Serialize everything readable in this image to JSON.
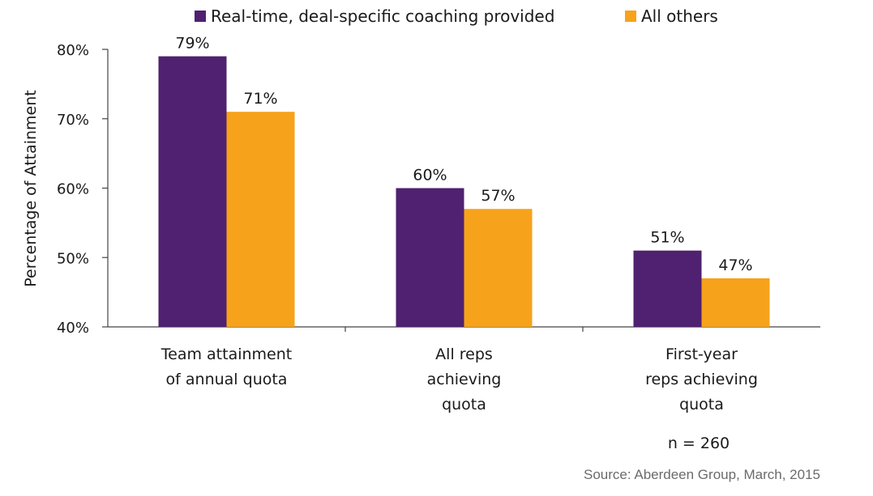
{
  "chart_data": {
    "type": "bar",
    "categories": [
      [
        "Team attainment",
        "of annual quota"
      ],
      [
        "All reps",
        "achieving",
        "quota"
      ],
      [
        "First-year",
        "reps achieving",
        "quota"
      ]
    ],
    "series": [
      {
        "name": "Real-time, deal-specific coaching provided",
        "color": "#4f2170",
        "values": [
          79,
          60,
          51
        ],
        "labels": [
          "79%",
          "60%",
          "51%"
        ]
      },
      {
        "name": "All others",
        "color": "#f7a21b",
        "values": [
          71,
          57,
          47
        ],
        "labels": [
          "71%",
          "57%",
          "47%"
        ]
      }
    ],
    "ylabel": "Percentage of Attainment",
    "ylim": [
      40,
      80
    ],
    "yticks": [
      40,
      50,
      60,
      70,
      80
    ],
    "ytick_labels": [
      "40%",
      "50%",
      "60%",
      "70%",
      "80%"
    ],
    "grid": false,
    "legend_position": "top"
  },
  "note": "n = 260",
  "source": "Source: Aberdeen Group, March, 2015"
}
